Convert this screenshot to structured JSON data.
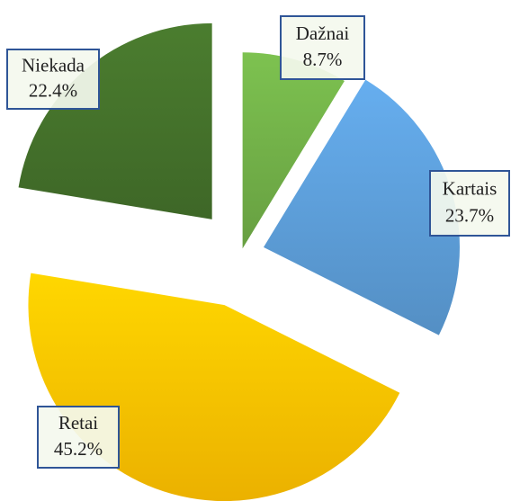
{
  "chart_data": {
    "type": "pie",
    "categories": [
      "Dažnai",
      "Kartais",
      "Retai",
      "Niekada"
    ],
    "values": [
      8.7,
      23.7,
      45.2,
      22.4
    ],
    "value_labels": [
      "8.7%",
      "23.7%",
      "45.2%",
      "22.4%"
    ],
    "colors": [
      "#70ad47",
      "#5b9bd5",
      "#ffc000",
      "#43702a"
    ]
  }
}
